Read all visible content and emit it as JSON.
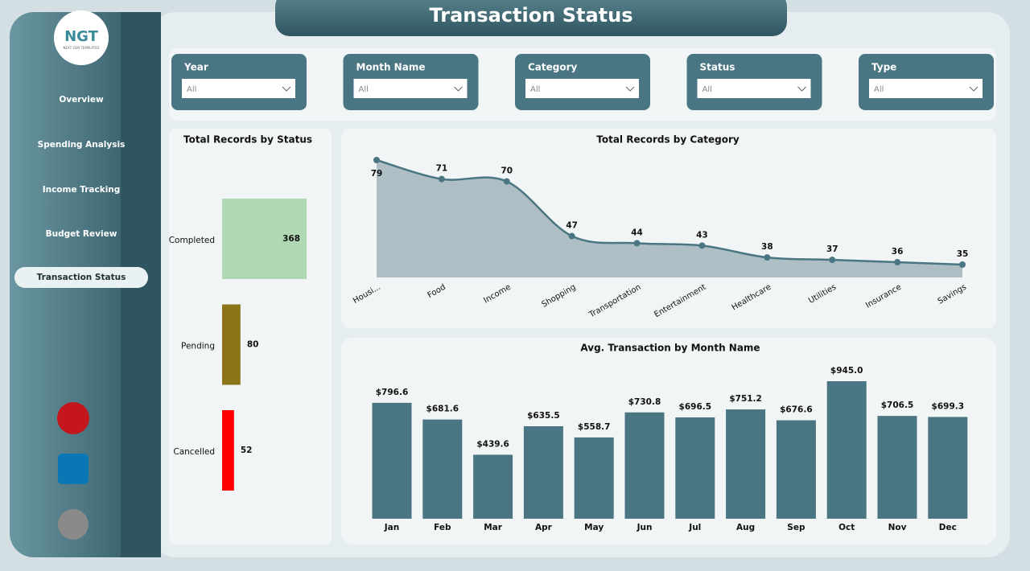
{
  "title": "Transaction Status",
  "logo": {
    "text": "NGT",
    "subtitle": "NEXT GEN TEMPLATES"
  },
  "nav": [
    "Overview",
    "Spending Analysis",
    "Income Tracking",
    "Budget Review",
    "Transaction Status"
  ],
  "filters": [
    {
      "label": "Year",
      "value": "All"
    },
    {
      "label": "Month Name",
      "value": "All"
    },
    {
      "label": "Category",
      "value": "All"
    },
    {
      "label": "Status",
      "value": "All"
    },
    {
      "label": "Type",
      "value": "All"
    }
  ],
  "charts": [
    {
      "type": "hbar",
      "title": "Total Records by Status",
      "categories": [
        "Completed",
        "Pending",
        "Cancelled"
      ],
      "values": [
        368,
        80,
        52
      ],
      "colors": [
        "#b0d8b4",
        "#8b7518",
        "#ff0000"
      ]
    },
    {
      "type": "area",
      "title": "Total Records by Category",
      "categories": [
        "Housi...",
        "Food",
        "Income",
        "Shopping",
        "Transportation",
        "Entertainment",
        "Healthcare",
        "Utilities",
        "Insurance",
        "Savings"
      ],
      "values": [
        79,
        71,
        70,
        47,
        44,
        43,
        38,
        37,
        36,
        35
      ],
      "color": "#4a7683"
    },
    {
      "type": "bar",
      "title": "Avg. Transaction by Month Name",
      "categories": [
        "Jan",
        "Feb",
        "Mar",
        "Apr",
        "May",
        "Jun",
        "Jul",
        "Aug",
        "Sep",
        "Oct",
        "Nov",
        "Dec"
      ],
      "values": [
        796.6,
        681.6,
        439.6,
        635.5,
        558.7,
        730.8,
        696.5,
        751.2,
        676.6,
        945.0,
        706.5,
        699.3
      ],
      "value_labels": [
        "$796.6",
        "$681.6",
        "$439.6",
        "$635.5",
        "$558.7",
        "$730.8",
        "$696.5",
        "$751.2",
        "$676.6",
        "$945.0",
        "$706.5",
        "$699.3"
      ],
      "color": "#4a7683"
    }
  ]
}
